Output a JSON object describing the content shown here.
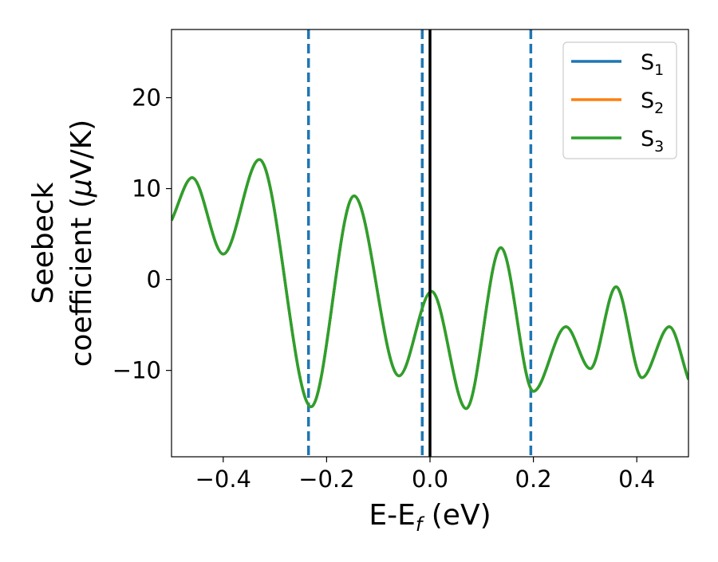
{
  "chart_data": {
    "type": "line",
    "xlabel": "E-E",
    "xlabel_sub": "f",
    "xlabel_unit": " (eV)",
    "ylabel_line1": "Seebeck",
    "ylabel_line2_pre": "coefficient  (",
    "ylabel_mu": "μ",
    "ylabel_line2_post": "V/K)",
    "xlim": [
      -0.5,
      0.5
    ],
    "ylim": [
      -19.5,
      27.5
    ],
    "x_ticks": [
      -0.4,
      -0.2,
      0.0,
      0.2,
      0.4
    ],
    "x_tick_labels": [
      "−0.4",
      "−0.2",
      "0.0",
      "0.2",
      "0.4"
    ],
    "y_ticks": [
      -10,
      0,
      10,
      20
    ],
    "y_tick_labels": [
      "−10",
      "0",
      "10",
      "20"
    ],
    "grid": false,
    "legend_position": "top-right",
    "legend": [
      {
        "label": "S",
        "sub": "1",
        "color": "#1f77b4"
      },
      {
        "label": "S",
        "sub": "2",
        "color": "#ff7f0e"
      },
      {
        "label": "S",
        "sub": "3",
        "color": "#2ca02c"
      }
    ],
    "vlines": [
      {
        "x": -0.235,
        "style": "dashed",
        "color": "#1f77b4"
      },
      {
        "x": -0.015,
        "style": "dashed",
        "color": "#1f77b4"
      },
      {
        "x": 0.195,
        "style": "dashed",
        "color": "#1f77b4"
      },
      {
        "x": 0.0,
        "style": "solid",
        "color": "#000000"
      }
    ],
    "series": [
      {
        "name": "S1",
        "color": "#1f77b4",
        "x": [
          -0.5,
          -0.46,
          -0.4,
          -0.33,
          -0.23,
          -0.147,
          -0.06,
          0.003,
          0.07,
          0.137,
          0.2,
          0.263,
          0.31,
          0.36,
          0.41,
          0.463,
          0.5
        ],
        "y": [
          6.5,
          11.2,
          2.8,
          13.2,
          -14.0,
          9.2,
          -10.6,
          -1.3,
          -14.2,
          3.5,
          -12.3,
          -5.2,
          -9.8,
          -0.8,
          -10.8,
          -5.2,
          -11.0
        ]
      },
      {
        "name": "S2",
        "color": "#ff7f0e",
        "x": [
          -0.5,
          -0.46,
          -0.4,
          -0.33,
          -0.23,
          -0.147,
          -0.06,
          0.003,
          0.07,
          0.137,
          0.2,
          0.263,
          0.31,
          0.36,
          0.41,
          0.463,
          0.5
        ],
        "y": [
          6.5,
          11.2,
          2.8,
          13.2,
          -14.0,
          9.2,
          -10.6,
          -1.3,
          -14.2,
          3.5,
          -12.3,
          -5.2,
          -9.8,
          -0.8,
          -10.8,
          -5.2,
          -11.0
        ]
      },
      {
        "name": "S3",
        "color": "#2ca02c",
        "x": [
          -0.5,
          -0.46,
          -0.4,
          -0.33,
          -0.23,
          -0.147,
          -0.06,
          0.003,
          0.07,
          0.137,
          0.2,
          0.263,
          0.31,
          0.36,
          0.41,
          0.463,
          0.5
        ],
        "y": [
          6.5,
          11.2,
          2.8,
          13.2,
          -14.0,
          9.2,
          -10.6,
          -1.3,
          -14.2,
          3.5,
          -12.3,
          -5.2,
          -9.8,
          -0.8,
          -10.8,
          -5.2,
          -11.0
        ]
      }
    ]
  }
}
